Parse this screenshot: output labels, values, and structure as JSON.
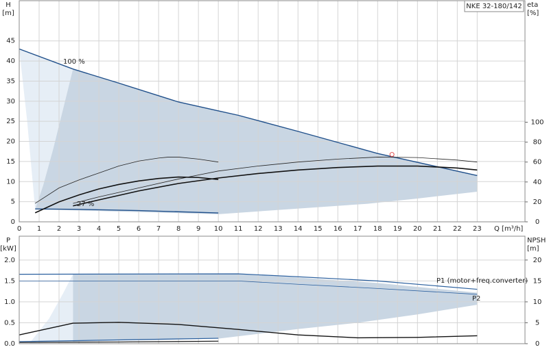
{
  "chart_data": [
    {
      "type": "line",
      "title": "NKE 32-180/142",
      "ylabel": [
        "H",
        "[m]"
      ],
      "y2label": [
        "eta",
        "[%]"
      ],
      "xlabel": "Q [m³/h]",
      "xlim": [
        0,
        25.4
      ],
      "xticks": [
        0,
        1,
        2,
        3,
        4,
        5,
        6,
        7,
        8,
        9,
        10,
        11,
        12,
        13,
        14,
        15,
        16,
        17,
        18,
        19,
        20,
        21,
        22,
        23
      ],
      "ylim": [
        0,
        55
      ],
      "yticks": [
        0,
        5,
        10,
        15,
        20,
        25,
        30,
        35,
        40,
        45
      ],
      "y2lim": [
        0,
        222
      ],
      "y2ticks": [
        0,
        20,
        40,
        60,
        80,
        100
      ],
      "grid": true,
      "regions": [
        {
          "color": "#e6eef6",
          "x": [
            0,
            2.7,
            2.2,
            1.7,
            1.2,
            0.8,
            0.4
          ],
          "values": [
            43,
            38,
            28,
            18,
            9,
            3.1,
            25
          ]
        },
        {
          "color": "#c9d6e3",
          "x": [
            2.7,
            5,
            8,
            10,
            11,
            14,
            18,
            23,
            23,
            20,
            17.5,
            10,
            0.8,
            1.2,
            1.7,
            2.2
          ],
          "values": [
            38,
            34.5,
            29.8,
            27.6,
            26.5,
            22.5,
            17,
            11.5,
            7.5,
            5.8,
            4.5,
            1.9,
            3.1,
            9,
            18,
            28
          ]
        }
      ],
      "series": [
        {
          "color": "#1f4f8a",
          "width": 1.4,
          "x": [
            0,
            2.7,
            5,
            8,
            10,
            11,
            14,
            18,
            23
          ],
          "values": [
            43,
            38,
            34.5,
            29.8,
            27.6,
            26.5,
            22.5,
            17,
            11.5
          ]
        },
        {
          "color": "#1f4f8a",
          "width": 1.4,
          "x": [
            0.8,
            3,
            6,
            10
          ],
          "values": [
            3.2,
            3.1,
            2.8,
            2.2
          ]
        },
        {
          "color": "#222",
          "width": 0.8,
          "axis": "y2",
          "x": [
            0.8,
            2,
            3,
            4,
            5,
            6,
            7,
            7.5,
            8,
            9,
            10
          ],
          "values": [
            18.5,
            34,
            42,
            49,
            56,
            61,
            64,
            65,
            65,
            63,
            60
          ]
        },
        {
          "color": "#111",
          "width": 1.6,
          "axis": "y2",
          "x": [
            0.8,
            2,
            3,
            4,
            5,
            6,
            7,
            8,
            9,
            10
          ],
          "values": [
            9,
            20,
            27,
            33,
            37.5,
            41,
            43.5,
            45,
            44.5,
            42.5
          ]
        },
        {
          "color": "#222",
          "width": 0.8,
          "axis": "y2",
          "x": [
            2.7,
            4,
            6,
            8,
            10,
            12,
            14,
            16,
            18,
            20,
            22,
            23
          ],
          "values": [
            18.5,
            25,
            34,
            43,
            51,
            56,
            60,
            63,
            65,
            64.5,
            62,
            60
          ]
        },
        {
          "color": "#111",
          "width": 1.6,
          "axis": "y2",
          "x": [
            2.7,
            4,
            6,
            8,
            10,
            12,
            14,
            16,
            18,
            20,
            22,
            23
          ],
          "values": [
            16,
            22,
            31,
            38.5,
            44,
            48.5,
            52,
            54.5,
            56,
            56,
            54,
            52
          ]
        }
      ],
      "duty_point": {
        "x": 18.72,
        "y": 16.75,
        "color": "#e05050"
      },
      "annotations": [
        "100 %",
        "27 %"
      ]
    },
    {
      "type": "line",
      "ylabel": [
        "P",
        "[kW]"
      ],
      "y2label": [
        "NPSH",
        "[m]"
      ],
      "xlim": [
        0,
        25.4
      ],
      "xticks": [
        0,
        1,
        2,
        3,
        4,
        5,
        6,
        7,
        8,
        9,
        10,
        11,
        12,
        13,
        14,
        15,
        16,
        17,
        18,
        19,
        20,
        21,
        22,
        23
      ],
      "ylim": [
        0,
        2.57
      ],
      "yticks": [
        {
          "value": 0,
          "label": "0.0"
        },
        0.5,
        {
          "value": 1,
          "label": "1.0"
        },
        1.5,
        {
          "value": 2,
          "label": "2.0"
        }
      ],
      "y2lim": [
        0,
        25.7
      ],
      "y2ticks": [
        0,
        5,
        10,
        15,
        20
      ],
      "grid": true,
      "regions": [
        {
          "color": "#e6eef6",
          "x": [
            0.5,
            1.5,
            2.2,
            2.7,
            2.7
          ],
          "values": [
            0,
            0.6,
            1.2,
            1.66,
            0.05
          ]
        },
        {
          "color": "#c9d6e3",
          "x": [
            2.7,
            11,
            14,
            18,
            23,
            23,
            20,
            17,
            14,
            10,
            2.7
          ],
          "values": [
            1.66,
            1.67,
            1.58,
            1.45,
            1.22,
            0.93,
            0.7,
            0.5,
            0.35,
            0.12,
            0.05
          ]
        }
      ],
      "series": [
        {
          "color": "#2a5f9e",
          "width": 1.2,
          "x": [
            0,
            11,
            14,
            18,
            23
          ],
          "values": [
            1.66,
            1.67,
            1.6,
            1.5,
            1.3
          ]
        },
        {
          "color": "#2a5f9e",
          "width": 0.8,
          "x": [
            0,
            11,
            14,
            18,
            23
          ],
          "values": [
            1.5,
            1.5,
            1.42,
            1.32,
            1.18
          ]
        },
        {
          "color": "#111",
          "width": 1.4,
          "axis": "y2",
          "x": [
            0,
            2.7,
            5,
            8,
            11,
            14,
            17,
            20,
            23
          ],
          "values": [
            2.1,
            4.9,
            5.1,
            4.6,
            3.4,
            2.1,
            1.4,
            1.5,
            1.9
          ]
        },
        {
          "color": "#2a5f9e",
          "width": 1.2,
          "x": [
            0,
            5,
            10
          ],
          "values": [
            0.05,
            0.09,
            0.13
          ]
        },
        {
          "color": "#111",
          "width": 1.2,
          "axis": "y2",
          "x": [
            0,
            5,
            10
          ],
          "values": [
            0.3,
            0.4,
            0.6
          ]
        }
      ],
      "annotations": [
        "P1 (motor+freq.converter)",
        "P2"
      ]
    }
  ]
}
